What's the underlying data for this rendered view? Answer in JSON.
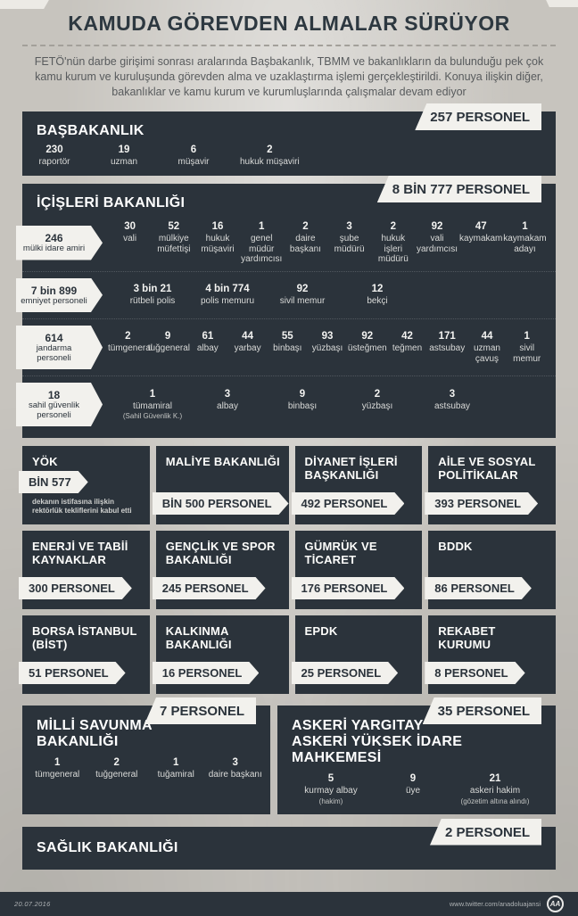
{
  "title": "KAMUDA GÖREVDEN ALMALAR SÜRÜYOR",
  "intro": "FETÖ'nün darbe girişimi sonrası aralarında Başbakanlık, TBMM ve bakanlıkların da bulunduğu pek çok kamu kurum ve kuruluşunda görevden alma ve uzaklaştırma işlemi gerçekleştirildi. Konuya ilişkin diğer, bakanlıklar ve kamu kurum ve kurumluşlarında çalışmalar devam ediyor",
  "colors": {
    "panel": "#2b333b",
    "badge": "#f2f1ed",
    "page_bg": "#c7c4be"
  },
  "sections": {
    "basbakanlik": {
      "title": "BAŞBAKANLIK",
      "badge": "257 PERSONEL",
      "items": [
        {
          "value": "230",
          "label": "raportör"
        },
        {
          "value": "19",
          "label": "uzman"
        },
        {
          "value": "6",
          "label": "müşavir"
        },
        {
          "value": "2",
          "label": "hukuk müşaviri"
        }
      ]
    },
    "icisleri": {
      "title": "İÇİŞLERİ BAKANLIĞI",
      "badge": "8 BİN 777 PERSONEL",
      "rows": [
        {
          "tag": {
            "value": "246",
            "label": "mülki idare amiri"
          },
          "items": [
            {
              "value": "30",
              "label": "vali"
            },
            {
              "value": "52",
              "label": "mülkiye müfettişi"
            },
            {
              "value": "16",
              "label": "hukuk müşaviri"
            },
            {
              "value": "1",
              "label": "genel müdür yardımcısı"
            },
            {
              "value": "2",
              "label": "daire başkanı"
            },
            {
              "value": "3",
              "label": "şube müdürü"
            },
            {
              "value": "2",
              "label": "hukuk işleri müdürü"
            },
            {
              "value": "92",
              "label": "vali yardımcısı"
            },
            {
              "value": "47",
              "label": "kaymakam"
            },
            {
              "value": "1",
              "label": "kaymakam adayı"
            }
          ]
        },
        {
          "tag": {
            "value": "7 bin 899",
            "label": "emniyet personeli"
          },
          "items": [
            {
              "value": "3 bin 21",
              "label": "rütbeli polis"
            },
            {
              "value": "4 bin 774",
              "label": "polis memuru"
            },
            {
              "value": "92",
              "label": "sivil memur"
            },
            {
              "value": "12",
              "label": "bekçi"
            }
          ]
        },
        {
          "tag": {
            "value": "614",
            "label": "jandarma personeli"
          },
          "items": [
            {
              "value": "2",
              "label": "tümgeneral"
            },
            {
              "value": "9",
              "label": "tuğgeneral"
            },
            {
              "value": "61",
              "label": "albay"
            },
            {
              "value": "44",
              "label": "yarbay"
            },
            {
              "value": "55",
              "label": "binbaşı"
            },
            {
              "value": "93",
              "label": "yüzbaşı"
            },
            {
              "value": "92",
              "label": "üsteğmen"
            },
            {
              "value": "42",
              "label": "teğmen"
            },
            {
              "value": "171",
              "label": "astsubay"
            },
            {
              "value": "44",
              "label": "uzman çavuş"
            },
            {
              "value": "1",
              "label": "sivil memur"
            }
          ]
        },
        {
          "tag": {
            "value": "18",
            "label": "sahil güvenlik personeli"
          },
          "items": [
            {
              "value": "1",
              "label": "tümamiral",
              "note": "(Sahil Güvenlik K.)"
            },
            {
              "value": "3",
              "label": "albay"
            },
            {
              "value": "9",
              "label": "binbaşı"
            },
            {
              "value": "2",
              "label": "yüzbaşı"
            },
            {
              "value": "3",
              "label": "astsubay"
            }
          ]
        }
      ]
    },
    "milli_savunma": {
      "title": "MİLLİ SAVUNMA BAKANLIĞI",
      "badge": "7 PERSONEL",
      "items": [
        {
          "value": "1",
          "label": "tümgeneral"
        },
        {
          "value": "2",
          "label": "tuğgeneral"
        },
        {
          "value": "1",
          "label": "tuğamiral"
        },
        {
          "value": "3",
          "label": "daire başkanı"
        }
      ]
    },
    "askeri": {
      "title_line1": "ASKERİ YARGITAY",
      "title_line2": "ASKERİ YÜKSEK İDARE MAHKEMESİ",
      "badge": "35 PERSONEL",
      "items": [
        {
          "value": "5",
          "label": "kurmay albay",
          "note": "(hakim)"
        },
        {
          "value": "9",
          "label": "üye"
        },
        {
          "value": "21",
          "label": "askeri hakim",
          "note": "(gözetim altına alındı)"
        }
      ]
    },
    "saglik": {
      "title": "SAĞLIK BAKANLIĞI",
      "badge": "2 PERSONEL"
    }
  },
  "cards": [
    {
      "title": "YÖK",
      "badge": "BİN 577",
      "note": "dekanın istifasına ilişkin rektörlük tekliflerini kabul etti"
    },
    {
      "title": "MALİYE BAKANLIĞI",
      "badge": "BİN 500 PERSONEL"
    },
    {
      "title": "DİYANET İŞLERİ BAŞKANLIĞI",
      "badge": "492 PERSONEL"
    },
    {
      "title": "AİLE VE SOSYAL POLİTİKALAR",
      "badge": "393 PERSONEL"
    },
    {
      "title": "ENERJİ VE TABİİ KAYNAKLAR",
      "badge": "300 PERSONEL"
    },
    {
      "title": "GENÇLİK VE SPOR BAKANLIĞI",
      "badge": "245 PERSONEL"
    },
    {
      "title": "GÜMRÜK VE TİCARET",
      "badge": "176 PERSONEL"
    },
    {
      "title": "BDDK",
      "badge": "86 PERSONEL"
    },
    {
      "title": "BORSA İSTANBUL (BİST)",
      "badge": "51 PERSONEL"
    },
    {
      "title": "KALKINMA BAKANLIĞI",
      "badge": "16 PERSONEL"
    },
    {
      "title": "EPDK",
      "badge": "25 PERSONEL"
    },
    {
      "title": "REKABET KURUMU",
      "badge": "8 PERSONEL"
    }
  ],
  "footer": {
    "date": "20.07.2016",
    "handle": "www.twitter.com/anadoluajansi",
    "logo": "AA"
  }
}
